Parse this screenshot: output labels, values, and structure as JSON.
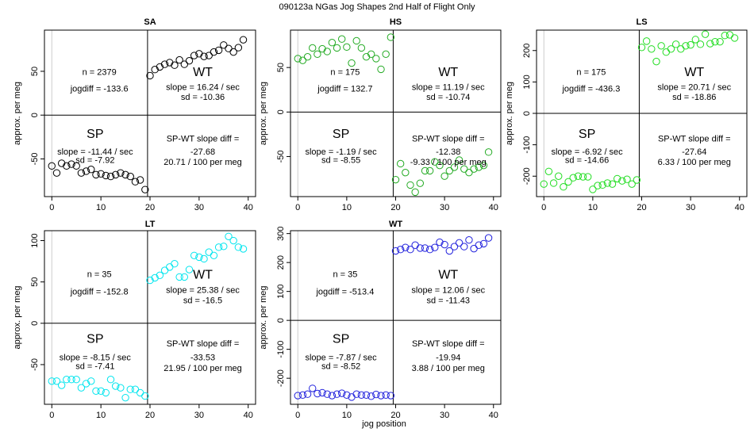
{
  "figure": {
    "title": "090123a    NGas Jog Shapes 2nd Half of Flight Only",
    "shared_xlabel": "jog position"
  },
  "chart_data": [
    {
      "type": "scatter",
      "title": "SA",
      "xlabel": "",
      "ylabel": "approx. per meg",
      "xlim": [
        -1.5,
        41.5
      ],
      "ylim": [
        -93,
        97
      ],
      "xticks": [
        0,
        10,
        20,
        30,
        40
      ],
      "yticks": [
        -50,
        0,
        50
      ],
      "color": "#000000",
      "sp_x": [
        0,
        1,
        2,
        3,
        4,
        5,
        6,
        7,
        8,
        9,
        10,
        11,
        12,
        13,
        14,
        15,
        16,
        17,
        18,
        19
      ],
      "sp_y": [
        -58,
        -66,
        -55,
        -58,
        -56,
        -58,
        -66,
        -64,
        -62,
        -68,
        -67,
        -69,
        -70,
        -68,
        -66,
        -68,
        -70,
        -76,
        -74,
        -85
      ],
      "wt_x": [
        20,
        21,
        22,
        23,
        24,
        25,
        26,
        27,
        28,
        29,
        30,
        31,
        32,
        33,
        34,
        35,
        36,
        37,
        38,
        39
      ],
      "wt_y": [
        45,
        52,
        55,
        58,
        60,
        57,
        63,
        58,
        62,
        68,
        70,
        67,
        68,
        72,
        74,
        80,
        76,
        72,
        77,
        86
      ],
      "stats": {
        "n": "n = 2379",
        "jogdiff": "jogdiff = -133.6",
        "sp_label": "SP",
        "sp_slope": "slope = -11.44 / sec",
        "sp_sd": "sd = -7.92",
        "wt_label": "WT",
        "wt_slope": "slope = 16.24 / sec",
        "wt_sd": "sd = -10.36",
        "diff_label": "SP-WT slope diff =",
        "diff_value": "-27.68",
        "diff_per": "20.71 / 100 per meg"
      }
    },
    {
      "type": "scatter",
      "title": "HS",
      "xlabel": "",
      "ylabel": "approx. per meg",
      "xlim": [
        -1.5,
        41.5
      ],
      "ylim": [
        -95,
        92
      ],
      "xticks": [
        0,
        10,
        20,
        30,
        40
      ],
      "yticks": [
        -50,
        0,
        50
      ],
      "color": "#22aa22",
      "sp_x": [
        0,
        1,
        2,
        3,
        4,
        5,
        6,
        7,
        8,
        9,
        10,
        11,
        12,
        13,
        14,
        15,
        16,
        17,
        18,
        19
      ],
      "sp_y": [
        60,
        58,
        62,
        72,
        65,
        71,
        68,
        78,
        72,
        82,
        73,
        55,
        80,
        72,
        62,
        65,
        60,
        48,
        65,
        84
      ],
      "wt_x": [
        20,
        21,
        22,
        23,
        24,
        25,
        26,
        27,
        28,
        29,
        30,
        31,
        32,
        33,
        34,
        35,
        36,
        37,
        38,
        39
      ],
      "wt_y": [
        -76,
        -58,
        -68,
        -82,
        -90,
        -80,
        -66,
        -66,
        -56,
        -60,
        -72,
        -66,
        -62,
        -54,
        -64,
        -68,
        -64,
        -62,
        -60,
        -45
      ],
      "stats": {
        "n": "n = 175",
        "jogdiff": "jogdiff = 132.7",
        "sp_label": "SP",
        "sp_slope": "slope = -1.19 / sec",
        "sp_sd": "sd = -8.55",
        "wt_label": "WT",
        "wt_slope": "slope = 11.19 / sec",
        "wt_sd": "sd = -10.74",
        "diff_label": "SP-WT slope diff =",
        "diff_value": "-12.38",
        "diff_per": "-9.33 / 100 per meg"
      }
    },
    {
      "type": "scatter",
      "title": "LS",
      "xlabel": "",
      "ylabel": "approx. per meg",
      "xlim": [
        -1.5,
        41.5
      ],
      "ylim": [
        -265,
        265
      ],
      "xticks": [
        0,
        10,
        20,
        30,
        40
      ],
      "yticks": [
        -200,
        -100,
        0,
        100,
        200
      ],
      "color": "#22dd22",
      "sp_x": [
        0,
        1,
        2,
        3,
        4,
        5,
        6,
        7,
        8,
        9,
        10,
        11,
        12,
        13,
        14,
        15,
        16,
        17,
        18,
        19
      ],
      "sp_y": [
        -225,
        -185,
        -222,
        -200,
        -234,
        -218,
        -205,
        -200,
        -202,
        -202,
        -242,
        -230,
        -228,
        -222,
        -225,
        -208,
        -215,
        -210,
        -225,
        -212
      ],
      "wt_x": [
        20,
        21,
        22,
        23,
        24,
        25,
        26,
        27,
        28,
        29,
        30,
        31,
        32,
        33,
        34,
        35,
        36,
        37,
        38,
        39
      ],
      "wt_y": [
        210,
        230,
        205,
        165,
        215,
        195,
        205,
        220,
        205,
        215,
        218,
        235,
        220,
        252,
        222,
        228,
        228,
        248,
        250,
        240
      ],
      "stats": {
        "n": "n = 175",
        "jogdiff": "jogdiff = -436.3",
        "sp_label": "SP",
        "sp_slope": "slope = -6.92 / sec",
        "sp_sd": "sd = -14.66",
        "wt_label": "WT",
        "wt_slope": "slope = 20.71 / sec",
        "wt_sd": "sd = -18.86",
        "diff_label": "SP-WT slope diff =",
        "diff_value": "-27.64",
        "diff_per": "6.33 / 100 per meg"
      }
    },
    {
      "type": "scatter",
      "title": "LT",
      "xlabel": "",
      "ylabel": "approx. per meg",
      "xlim": [
        -1.5,
        41.5
      ],
      "ylim": [
        -98,
        112
      ],
      "xticks": [
        0,
        10,
        20,
        30,
        40
      ],
      "yticks": [
        -50,
        0,
        50,
        100
      ],
      "color": "#00e5ee",
      "sp_x": [
        0,
        1,
        2,
        3,
        4,
        5,
        6,
        7,
        8,
        9,
        10,
        11,
        12,
        13,
        14,
        15,
        16,
        17,
        18,
        19
      ],
      "sp_y": [
        -70,
        -70,
        -75,
        -68,
        -68,
        -68,
        -78,
        -73,
        -70,
        -82,
        -82,
        -84,
        -68,
        -76,
        -78,
        -90,
        -80,
        -80,
        -84,
        -88
      ],
      "wt_x": [
        20,
        21,
        22,
        23,
        24,
        25,
        26,
        27,
        28,
        29,
        30,
        31,
        32,
        33,
        34,
        35,
        36,
        37,
        38,
        39
      ],
      "wt_y": [
        52,
        55,
        58,
        64,
        68,
        72,
        56,
        56,
        65,
        82,
        80,
        78,
        86,
        82,
        92,
        93,
        105,
        100,
        92,
        90
      ],
      "stats": {
        "n": "n = 35",
        "jogdiff": "jogdiff = -152.8",
        "sp_label": "SP",
        "sp_slope": "slope = -8.15 / sec",
        "sp_sd": "sd = -7.41",
        "wt_label": "WT",
        "wt_slope": "slope = 25.38 / sec",
        "wt_sd": "sd = -16.5",
        "diff_label": "SP-WT slope diff =",
        "diff_value": "-33.53",
        "diff_per": "21.95 / 100 per meg"
      }
    },
    {
      "type": "scatter",
      "title": "WT",
      "xlabel": "jog position",
      "ylabel": "approx. per meg",
      "xlim": [
        -1.5,
        41.5
      ],
      "ylim": [
        -290,
        310
      ],
      "xticks": [
        0,
        10,
        20,
        30,
        40
      ],
      "yticks": [
        -200,
        -100,
        0,
        100,
        200,
        300
      ],
      "color": "#2222dd",
      "sp_x": [
        0,
        1,
        2,
        3,
        4,
        5,
        6,
        7,
        8,
        9,
        10,
        11,
        12,
        13,
        14,
        15,
        16,
        17,
        18,
        19
      ],
      "sp_y": [
        -260,
        -258,
        -255,
        -235,
        -253,
        -250,
        -255,
        -260,
        -255,
        -252,
        -258,
        -265,
        -255,
        -258,
        -258,
        -262,
        -256,
        -260,
        -258,
        -260
      ],
      "wt_x": [
        20,
        21,
        22,
        23,
        24,
        25,
        26,
        27,
        28,
        29,
        30,
        31,
        32,
        33,
        34,
        35,
        36,
        37,
        38,
        39
      ],
      "wt_y": [
        240,
        245,
        252,
        245,
        260,
        250,
        250,
        245,
        252,
        270,
        262,
        240,
        255,
        268,
        255,
        278,
        248,
        260,
        265,
        285
      ],
      "stats": {
        "n": "n = 35",
        "jogdiff": "jogdiff = -513.4",
        "sp_label": "SP",
        "sp_slope": "slope = -7.87 / sec",
        "sp_sd": "sd = -8.52",
        "wt_label": "WT",
        "wt_slope": "slope = 12.06 / sec",
        "wt_sd": "sd = -11.43",
        "diff_label": "SP-WT slope diff =",
        "diff_value": "-19.94",
        "diff_per": "3.88 / 100 per meg"
      }
    }
  ]
}
